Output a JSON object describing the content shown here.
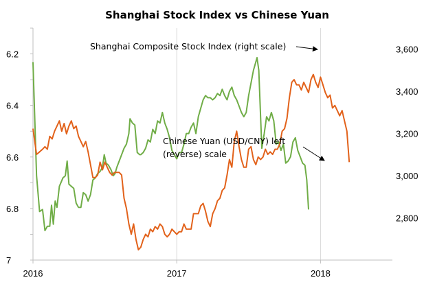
{
  "chart_data": {
    "type": "line",
    "title": "Shanghai Stock Index vs Chinese Yuan",
    "x_ticks": [
      "2016",
      "2017",
      "2018"
    ],
    "x_range": [
      "2016-01",
      "2018-07"
    ],
    "left_axis": {
      "reversed": true,
      "range": [
        6.1,
        7.0
      ],
      "ticks": [
        "6.2",
        "6.4",
        "6.6",
        "6.8",
        "7"
      ]
    },
    "right_axis": {
      "range": [
        2600,
        3700
      ],
      "ticks": [
        "2,800",
        "3,000",
        "3,200",
        "3,400",
        "3,600"
      ]
    },
    "grid": {
      "vertical": true,
      "horizontal": false
    },
    "annotations": [
      {
        "text": "Shanghai Composite Stock Index (right scale)"
      },
      {
        "lines": [
          "Chinese Yuan (USD/CNY) left",
          "(reverse) scale"
        ]
      }
    ],
    "series": [
      {
        "axis": "right",
        "color": "#70ad47",
        "points": [
          [
            0.0,
            3539
          ],
          [
            0.3,
            3000
          ],
          [
            0.55,
            2830
          ],
          [
            0.8,
            2840
          ],
          [
            1.0,
            2740
          ],
          [
            1.2,
            2760
          ],
          [
            1.4,
            2760
          ],
          [
            1.55,
            2860
          ],
          [
            1.7,
            2770
          ],
          [
            1.85,
            2880
          ],
          [
            2.0,
            2850
          ],
          [
            2.2,
            2950
          ],
          [
            2.5,
            2990
          ],
          [
            2.7,
            3000
          ],
          [
            2.85,
            3070
          ],
          [
            3.0,
            2960
          ],
          [
            3.2,
            2950
          ],
          [
            3.4,
            2940
          ],
          [
            3.6,
            2870
          ],
          [
            3.8,
            2850
          ],
          [
            4.0,
            2850
          ],
          [
            4.2,
            2920
          ],
          [
            4.4,
            2910
          ],
          [
            4.6,
            2880
          ],
          [
            4.8,
            2910
          ],
          [
            5.0,
            2980
          ],
          [
            5.2,
            2990
          ],
          [
            5.4,
            3010
          ],
          [
            5.6,
            3020
          ],
          [
            5.8,
            3040
          ],
          [
            5.95,
            3100
          ],
          [
            6.1,
            3060
          ],
          [
            6.3,
            3050
          ],
          [
            6.5,
            3030
          ],
          [
            6.7,
            3000
          ],
          [
            6.85,
            3010
          ],
          [
            7.0,
            3040
          ],
          [
            7.2,
            3070
          ],
          [
            7.4,
            3100
          ],
          [
            7.6,
            3130
          ],
          [
            7.8,
            3150
          ],
          [
            8.0,
            3200
          ],
          [
            8.1,
            3270
          ],
          [
            8.3,
            3250
          ],
          [
            8.5,
            3240
          ],
          [
            8.7,
            3110
          ],
          [
            8.9,
            3100
          ],
          [
            9.0,
            3100
          ],
          [
            9.2,
            3110
          ],
          [
            9.4,
            3130
          ],
          [
            9.6,
            3170
          ],
          [
            9.8,
            3160
          ],
          [
            10.0,
            3220
          ],
          [
            10.2,
            3200
          ],
          [
            10.4,
            3260
          ],
          [
            10.6,
            3250
          ],
          [
            10.8,
            3300
          ],
          [
            11.0,
            3250
          ],
          [
            11.2,
            3220
          ],
          [
            11.4,
            3180
          ],
          [
            11.6,
            3120
          ],
          [
            11.8,
            3100
          ],
          [
            12.0,
            3080
          ],
          [
            12.2,
            3110
          ],
          [
            12.4,
            3110
          ],
          [
            12.6,
            3150
          ],
          [
            12.8,
            3200
          ],
          [
            13.0,
            3200
          ],
          [
            13.2,
            3230
          ],
          [
            13.4,
            3250
          ],
          [
            13.6,
            3200
          ],
          [
            13.8,
            3280
          ],
          [
            14.0,
            3320
          ],
          [
            14.2,
            3360
          ],
          [
            14.4,
            3380
          ],
          [
            14.6,
            3370
          ],
          [
            14.8,
            3370
          ],
          [
            15.0,
            3360
          ],
          [
            15.2,
            3370
          ],
          [
            15.4,
            3390
          ],
          [
            15.6,
            3380
          ],
          [
            15.8,
            3410
          ],
          [
            16.0,
            3380
          ],
          [
            16.2,
            3360
          ],
          [
            16.4,
            3400
          ],
          [
            16.6,
            3420
          ],
          [
            16.8,
            3380
          ],
          [
            17.0,
            3360
          ],
          [
            17.2,
            3330
          ],
          [
            17.4,
            3300
          ],
          [
            17.6,
            3280
          ],
          [
            17.8,
            3300
          ],
          [
            18.0,
            3380
          ],
          [
            18.2,
            3440
          ],
          [
            18.4,
            3500
          ],
          [
            18.6,
            3540
          ],
          [
            18.7,
            3560
          ],
          [
            18.85,
            3500
          ],
          [
            19.0,
            3280
          ],
          [
            19.1,
            3130
          ],
          [
            19.3,
            3200
          ],
          [
            19.5,
            3280
          ],
          [
            19.7,
            3260
          ],
          [
            19.9,
            3300
          ],
          [
            20.1,
            3260
          ],
          [
            20.3,
            3150
          ],
          [
            20.5,
            3160
          ],
          [
            20.7,
            3120
          ],
          [
            20.9,
            3150
          ],
          [
            21.1,
            3060
          ],
          [
            21.3,
            3070
          ],
          [
            21.5,
            3090
          ],
          [
            21.7,
            3160
          ],
          [
            21.9,
            3180
          ],
          [
            22.1,
            3120
          ],
          [
            22.3,
            3090
          ],
          [
            22.5,
            3060
          ],
          [
            22.7,
            3050
          ],
          [
            22.85,
            2980
          ],
          [
            23.0,
            2840
          ]
        ]
      },
      {
        "axis": "left",
        "color": "#e2621b",
        "points": [
          [
            0.0,
            6.49
          ],
          [
            0.3,
            6.59
          ],
          [
            0.55,
            6.58
          ],
          [
            0.8,
            6.57
          ],
          [
            1.0,
            6.56
          ],
          [
            1.2,
            6.57
          ],
          [
            1.4,
            6.52
          ],
          [
            1.6,
            6.53
          ],
          [
            1.8,
            6.5
          ],
          [
            2.0,
            6.48
          ],
          [
            2.2,
            6.46
          ],
          [
            2.4,
            6.5
          ],
          [
            2.6,
            6.47
          ],
          [
            2.8,
            6.51
          ],
          [
            3.0,
            6.48
          ],
          [
            3.2,
            6.46
          ],
          [
            3.4,
            6.49
          ],
          [
            3.6,
            6.48
          ],
          [
            3.8,
            6.52
          ],
          [
            4.0,
            6.54
          ],
          [
            4.2,
            6.56
          ],
          [
            4.4,
            6.54
          ],
          [
            4.6,
            6.58
          ],
          [
            4.8,
            6.63
          ],
          [
            5.0,
            6.68
          ],
          [
            5.2,
            6.68
          ],
          [
            5.4,
            6.67
          ],
          [
            5.6,
            6.62
          ],
          [
            5.8,
            6.65
          ],
          [
            6.0,
            6.62
          ],
          [
            6.2,
            6.64
          ],
          [
            6.4,
            6.66
          ],
          [
            6.6,
            6.67
          ],
          [
            6.8,
            6.66
          ],
          [
            7.0,
            6.66
          ],
          [
            7.2,
            6.66
          ],
          [
            7.4,
            6.67
          ],
          [
            7.6,
            6.76
          ],
          [
            7.8,
            6.8
          ],
          [
            8.0,
            6.86
          ],
          [
            8.2,
            6.9
          ],
          [
            8.4,
            6.86
          ],
          [
            8.6,
            6.92
          ],
          [
            8.8,
            6.96
          ],
          [
            9.0,
            6.95
          ],
          [
            9.2,
            6.92
          ],
          [
            9.4,
            6.9
          ],
          [
            9.6,
            6.91
          ],
          [
            9.8,
            6.88
          ],
          [
            10.0,
            6.89
          ],
          [
            10.2,
            6.87
          ],
          [
            10.4,
            6.88
          ],
          [
            10.6,
            6.86
          ],
          [
            10.8,
            6.87
          ],
          [
            11.0,
            6.9
          ],
          [
            11.2,
            6.91
          ],
          [
            11.4,
            6.9
          ],
          [
            11.6,
            6.88
          ],
          [
            11.8,
            6.89
          ],
          [
            12.0,
            6.9
          ],
          [
            12.2,
            6.89
          ],
          [
            12.4,
            6.89
          ],
          [
            12.6,
            6.86
          ],
          [
            12.8,
            6.88
          ],
          [
            13.0,
            6.88
          ],
          [
            13.2,
            6.88
          ],
          [
            13.4,
            6.82
          ],
          [
            13.6,
            6.82
          ],
          [
            13.8,
            6.82
          ],
          [
            14.0,
            6.79
          ],
          [
            14.2,
            6.78
          ],
          [
            14.4,
            6.81
          ],
          [
            14.6,
            6.85
          ],
          [
            14.8,
            6.87
          ],
          [
            15.0,
            6.82
          ],
          [
            15.2,
            6.8
          ],
          [
            15.4,
            6.77
          ],
          [
            15.6,
            6.76
          ],
          [
            15.8,
            6.73
          ],
          [
            16.0,
            6.72
          ],
          [
            16.2,
            6.67
          ],
          [
            16.4,
            6.61
          ],
          [
            16.6,
            6.64
          ],
          [
            16.8,
            6.54
          ],
          [
            17.0,
            6.5
          ],
          [
            17.2,
            6.56
          ],
          [
            17.4,
            6.61
          ],
          [
            17.6,
            6.64
          ],
          [
            17.8,
            6.64
          ],
          [
            18.0,
            6.57
          ],
          [
            18.2,
            6.56
          ],
          [
            18.4,
            6.61
          ],
          [
            18.6,
            6.63
          ],
          [
            18.8,
            6.6
          ],
          [
            19.0,
            6.61
          ],
          [
            19.2,
            6.6
          ],
          [
            19.4,
            6.57
          ],
          [
            19.6,
            6.59
          ],
          [
            19.8,
            6.58
          ],
          [
            20.0,
            6.59
          ],
          [
            20.2,
            6.57
          ],
          [
            20.4,
            6.57
          ],
          [
            20.6,
            6.55
          ],
          [
            20.8,
            6.5
          ],
          [
            21.0,
            6.49
          ],
          [
            21.2,
            6.45
          ],
          [
            21.4,
            6.37
          ],
          [
            21.6,
            6.31
          ],
          [
            21.8,
            6.3
          ],
          [
            22.0,
            6.32
          ],
          [
            22.2,
            6.32
          ],
          [
            22.4,
            6.34
          ],
          [
            22.6,
            6.31
          ],
          [
            22.8,
            6.33
          ],
          [
            23.0,
            6.35
          ],
          [
            23.2,
            6.3
          ],
          [
            23.4,
            6.28
          ],
          [
            23.6,
            6.31
          ],
          [
            23.8,
            6.33
          ],
          [
            24.0,
            6.29
          ],
          [
            24.2,
            6.32
          ],
          [
            24.4,
            6.35
          ],
          [
            24.6,
            6.37
          ],
          [
            24.8,
            6.36
          ],
          [
            25.0,
            6.41
          ],
          [
            25.2,
            6.4
          ],
          [
            25.4,
            6.42
          ],
          [
            25.6,
            6.44
          ],
          [
            25.8,
            6.42
          ],
          [
            26.0,
            6.46
          ],
          [
            26.2,
            6.5
          ],
          [
            26.4,
            6.62
          ]
        ]
      }
    ]
  }
}
